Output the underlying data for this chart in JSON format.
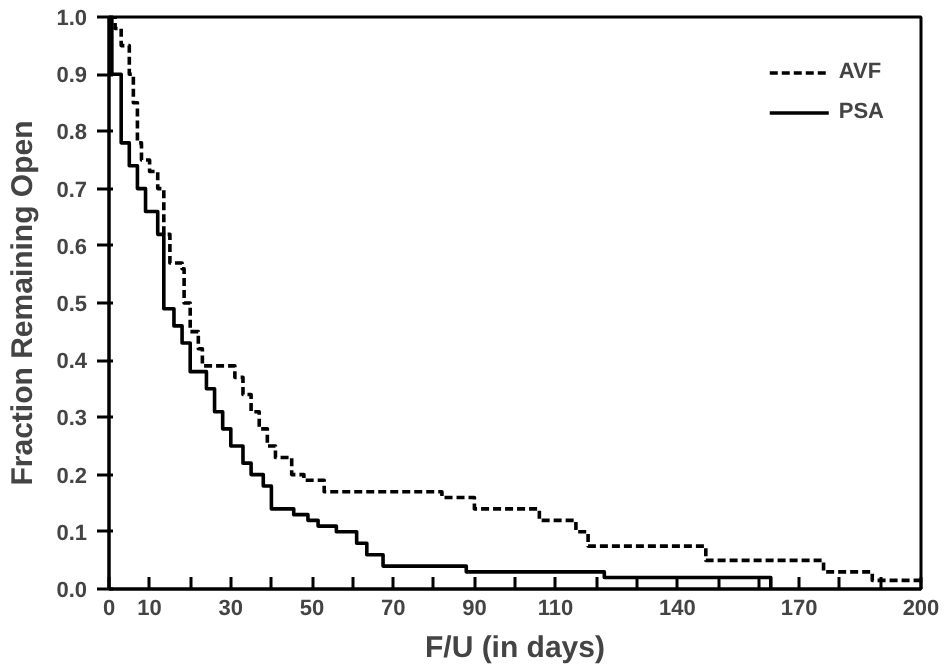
{
  "chart_data": {
    "type": "step",
    "xlabel": "F/U (in days)",
    "ylabel": "Fraction Remaining Open",
    "xlim": [
      0,
      200
    ],
    "ylim": [
      0,
      1
    ],
    "xticks": [
      0,
      10,
      {
        "value": 20,
        "label": null
      },
      30,
      {
        "value": 40,
        "label": null
      },
      50,
      {
        "value": 60,
        "label": null
      },
      70,
      {
        "value": 80,
        "label": null
      },
      90,
      {
        "value": 100,
        "label": null
      },
      110,
      {
        "value": 120,
        "label": null
      },
      {
        "value": 130,
        "label": null
      },
      140,
      {
        "value": 150,
        "label": null
      },
      {
        "value": 160,
        "label": null
      },
      170,
      {
        "value": 180,
        "label": null
      },
      {
        "value": 190,
        "label": null
      },
      200
    ],
    "yticks": [
      {
        "value": 0,
        "label": "0.0"
      },
      0.1,
      0.2,
      0.3,
      0.4,
      0.5,
      0.6,
      0.7,
      0.8,
      0.9,
      {
        "value": 1,
        "label": "1.0"
      }
    ],
    "grid": false,
    "legend": "top right",
    "marker": "none",
    "series": [
      {
        "name": "AVF",
        "color": "#000000",
        "line_style": "dashed",
        "x": [
          0,
          1.5,
          3,
          5,
          6,
          7,
          8,
          10,
          12,
          13.5,
          15,
          18,
          18.5,
          20,
          22,
          23,
          29.5,
          31,
          33,
          35,
          37,
          39,
          41,
          45,
          48,
          53,
          82,
          90,
          106,
          115,
          118,
          147,
          176,
          188,
          200
        ],
        "values": [
          1,
          0.98,
          0.95,
          0.9,
          0.85,
          0.78,
          0.75,
          0.73,
          0.7,
          0.62,
          0.57,
          0.56,
          0.5,
          0.45,
          0.42,
          0.39,
          0.39,
          0.37,
          0.34,
          0.31,
          0.28,
          0.25,
          0.23,
          0.2,
          0.19,
          0.17,
          0.16,
          0.14,
          0.12,
          0.1,
          0.075,
          0.05,
          0.03,
          0.015,
          0.015
        ]
      },
      {
        "name": "PSA",
        "color": "#000000",
        "line_style": "solid",
        "x": [
          0,
          0.7,
          3,
          5,
          7,
          9,
          12,
          13.5,
          16,
          18,
          20,
          24,
          26,
          28,
          30,
          33,
          35,
          38,
          40,
          45.5,
          49,
          51.5,
          56,
          61,
          63.5,
          67.5,
          88,
          122,
          163
        ],
        "values": [
          1,
          0.9,
          0.78,
          0.74,
          0.7,
          0.66,
          0.62,
          0.49,
          0.46,
          0.43,
          0.38,
          0.35,
          0.31,
          0.28,
          0.25,
          0.22,
          0.2,
          0.18,
          0.14,
          0.13,
          0.12,
          0.11,
          0.1,
          0.08,
          0.06,
          0.04,
          0.03,
          0.02,
          0
        ]
      }
    ]
  }
}
